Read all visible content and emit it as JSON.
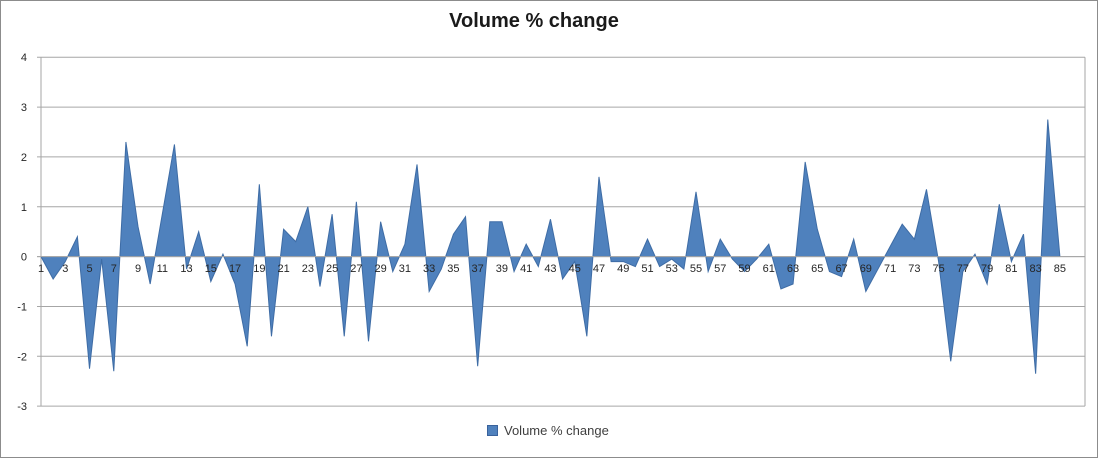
{
  "chart": {
    "title": "Volume % change",
    "legend": {
      "label": "Volume % change",
      "swatch_color": "#4f81bd"
    },
    "colors": {
      "area_fill": "#4f81bd",
      "area_stroke": "#3e6ca5",
      "gridline": "#a6a6a6",
      "axis": "#a6a6a6",
      "chart_border": "#8c8c8c",
      "title_text": "#1a1a1a",
      "tick_text": "#262626",
      "legend_text": "#3f3f3f"
    }
  },
  "chart_data": {
    "type": "area",
    "title": "Volume % change",
    "series": [
      {
        "name": "Volume % change",
        "values": [
          0,
          -0.45,
          -0.1,
          0.4,
          -2.25,
          -0.05,
          -2.3,
          2.3,
          0.6,
          -0.55,
          0.85,
          2.25,
          -0.25,
          0.5,
          -0.5,
          0.05,
          -0.55,
          -1.8,
          1.45,
          -1.6,
          0.55,
          0.3,
          1.0,
          -0.6,
          0.85,
          -1.6,
          1.1,
          -1.7,
          0.7,
          -0.3,
          0.25,
          1.85,
          -0.7,
          -0.25,
          0.45,
          0.8,
          -2.2,
          0.7,
          0.7,
          -0.3,
          0.25,
          -0.2,
          0.75,
          -0.45,
          -0.1,
          -1.6,
          1.6,
          -0.1,
          -0.1,
          -0.2,
          0.35,
          -0.2,
          -0.05,
          -0.25,
          1.3,
          -0.3,
          0.35,
          -0.05,
          -0.3,
          -0.05,
          0.25,
          -0.65,
          -0.55,
          1.9,
          0.55,
          -0.3,
          -0.4,
          0.35,
          -0.7,
          -0.25,
          0.2,
          0.65,
          0.35,
          1.35,
          -0.1,
          -2.1,
          -0.3,
          0.05,
          -0.55,
          1.05,
          -0.1,
          0.45,
          -2.35,
          2.75,
          0
        ]
      }
    ],
    "x_start": 1,
    "x_step": 1,
    "x_tick_labels": [
      "1",
      "3",
      "5",
      "7",
      "9",
      "11",
      "13",
      "15",
      "17",
      "19",
      "21",
      "23",
      "25",
      "27",
      "29",
      "31",
      "33",
      "35",
      "37",
      "39",
      "41",
      "43",
      "45",
      "47",
      "49",
      "51",
      "53",
      "55",
      "57",
      "59",
      "61",
      "63",
      "65",
      "67",
      "69",
      "71",
      "73",
      "75",
      "77",
      "79",
      "81",
      "83",
      "85"
    ],
    "y_ticks": [
      4,
      3,
      2,
      1,
      0,
      -1,
      -2,
      -3
    ],
    "ylim": [
      -3,
      4
    ],
    "xlabel": "",
    "ylabel": "",
    "grid": "horizontal",
    "legend_position": "bottom"
  }
}
